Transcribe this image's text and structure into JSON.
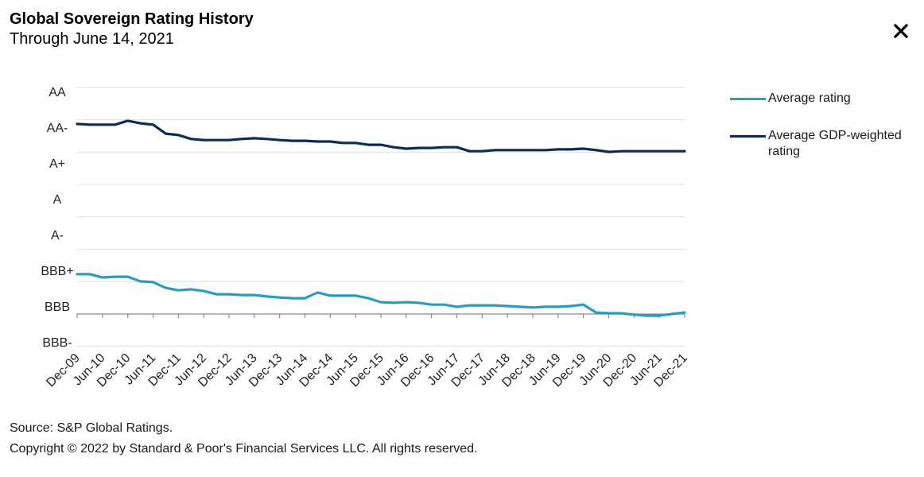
{
  "header": {
    "title": "Global Sovereign Rating History",
    "subtitle": "Through June 14, 2021",
    "close_icon": "close-icon"
  },
  "colors": {
    "average_rating": "#2a9cc4",
    "gdp_weighted": "#0b2d55",
    "gridline": "#e3e3e3",
    "axis": "#8c8c8c"
  },
  "footer": {
    "source": "Source: S&P Global Ratings.",
    "copyright": "Copyright © 2022 by Standard & Poor's Financial Services LLC. All rights reserved."
  },
  "chart_data": {
    "type": "line",
    "title": "Global Sovereign Rating History",
    "subtitle": "Through June 14, 2021",
    "xlabel": "",
    "ylabel": "",
    "y_scale_note": "Numeric rating scale: BBB-=0, BBB=1, BBB+=2, A-=3, A=4, A+=5, AA-=6, AA=7",
    "ylim": [
      0,
      7
    ],
    "y_tick_labels": [
      "BBB-",
      "BBB",
      "BBB+",
      "A-",
      "A",
      "A+",
      "AA-",
      "AA"
    ],
    "x_tick_labels": [
      "Dec-09",
      "Jun-10",
      "Dec-10",
      "Jun-11",
      "Dec-11",
      "Jun-12",
      "Dec-12",
      "Jun-13",
      "Dec-13",
      "Jun-14",
      "Dec-14",
      "Jun-15",
      "Dec-15",
      "Jun-16",
      "Dec-16",
      "Jun-17",
      "Dec-17",
      "Jun-18",
      "Dec-18",
      "Jun-19",
      "Dec-19",
      "Jun-20",
      "Dec-20",
      "Jun-21",
      "Dec-21"
    ],
    "x": [
      "Dec-09",
      "Mar-10",
      "Jun-10",
      "Sep-10",
      "Dec-10",
      "Mar-11",
      "Jun-11",
      "Sep-11",
      "Dec-11",
      "Mar-12",
      "Jun-12",
      "Sep-12",
      "Dec-12",
      "Mar-13",
      "Jun-13",
      "Sep-13",
      "Dec-13",
      "Mar-14",
      "Jun-14",
      "Sep-14",
      "Dec-14",
      "Mar-15",
      "Jun-15",
      "Sep-15",
      "Dec-15",
      "Mar-16",
      "Jun-16",
      "Sep-16",
      "Dec-16",
      "Mar-17",
      "Jun-17",
      "Sep-17",
      "Dec-17",
      "Mar-18",
      "Jun-18",
      "Sep-18",
      "Dec-18",
      "Mar-19",
      "Jun-19",
      "Sep-19",
      "Dec-19",
      "Mar-20",
      "Jun-20",
      "Sep-20",
      "Dec-20",
      "Mar-21",
      "Jun-21",
      "Sep-21",
      "Dec-21"
    ],
    "grid": true,
    "legend_position": "right",
    "series": [
      {
        "name": "Average rating",
        "color": "#2a9cc4",
        "values": [
          1.89,
          1.89,
          1.8,
          1.82,
          1.82,
          1.69,
          1.67,
          1.51,
          1.44,
          1.47,
          1.42,
          1.33,
          1.33,
          1.31,
          1.31,
          1.27,
          1.24,
          1.22,
          1.22,
          1.38,
          1.29,
          1.29,
          1.29,
          1.22,
          1.11,
          1.09,
          1.11,
          1.09,
          1.04,
          1.04,
          0.98,
          1.02,
          1.02,
          1.02,
          1.0,
          0.98,
          0.96,
          0.98,
          0.98,
          1.0,
          1.04,
          0.82,
          0.8,
          0.8,
          0.76,
          0.73,
          0.73,
          0.78,
          0.82
        ]
      },
      {
        "name": "Average GDP-weighted rating",
        "color": "#0b2d55",
        "values": [
          6.09,
          6.07,
          6.07,
          6.07,
          6.18,
          6.11,
          6.07,
          5.82,
          5.78,
          5.67,
          5.64,
          5.64,
          5.64,
          5.67,
          5.69,
          5.67,
          5.64,
          5.62,
          5.62,
          5.6,
          5.6,
          5.56,
          5.56,
          5.51,
          5.51,
          5.44,
          5.4,
          5.42,
          5.42,
          5.44,
          5.44,
          5.33,
          5.33,
          5.36,
          5.36,
          5.36,
          5.36,
          5.36,
          5.38,
          5.38,
          5.4,
          5.36,
          5.31,
          5.33,
          5.33,
          5.33,
          5.33,
          5.33,
          5.33
        ]
      }
    ]
  }
}
